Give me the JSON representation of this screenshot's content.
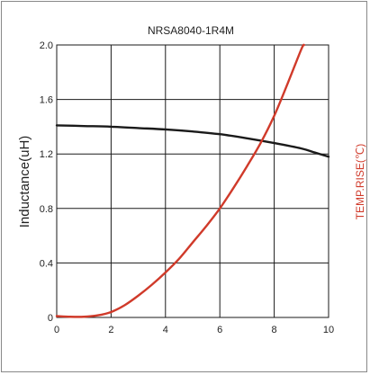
{
  "chart_data": {
    "type": "line",
    "title": "NRSA8040-1R4M",
    "ylabel": "Inductance(uH)",
    "y2label": "TEMP.RISE(℃)",
    "xlim": [
      0,
      10
    ],
    "ylim": [
      0,
      2.0
    ],
    "x_ticks": [
      "0",
      "2",
      "4",
      "6",
      "8",
      "10"
    ],
    "y_ticks": [
      "0",
      "0.4",
      "0.8",
      "1.2",
      "1.6",
      "2.0"
    ],
    "grid": true,
    "series": [
      {
        "role": "inductance",
        "color": "#1a1a1a",
        "x": [
          0,
          1,
          2,
          3,
          4,
          5,
          6,
          7,
          8,
          9,
          9.5,
          10
        ],
        "y": [
          1.41,
          1.405,
          1.4,
          1.39,
          1.38,
          1.365,
          1.345,
          1.315,
          1.28,
          1.24,
          1.21,
          1.18
        ]
      },
      {
        "role": "temp-rise",
        "color": "#d03a2a",
        "x": [
          0,
          0.5,
          1,
          1.5,
          2,
          2.5,
          3,
          3.5,
          4,
          4.5,
          5,
          5.5,
          6,
          6.5,
          7,
          7.5,
          8,
          8.5,
          9,
          9.1
        ],
        "y": [
          0.01,
          0.005,
          0.005,
          0.015,
          0.04,
          0.09,
          0.16,
          0.24,
          0.33,
          0.43,
          0.55,
          0.67,
          0.8,
          0.95,
          1.11,
          1.28,
          1.48,
          1.72,
          1.97,
          2.0
        ]
      }
    ]
  }
}
